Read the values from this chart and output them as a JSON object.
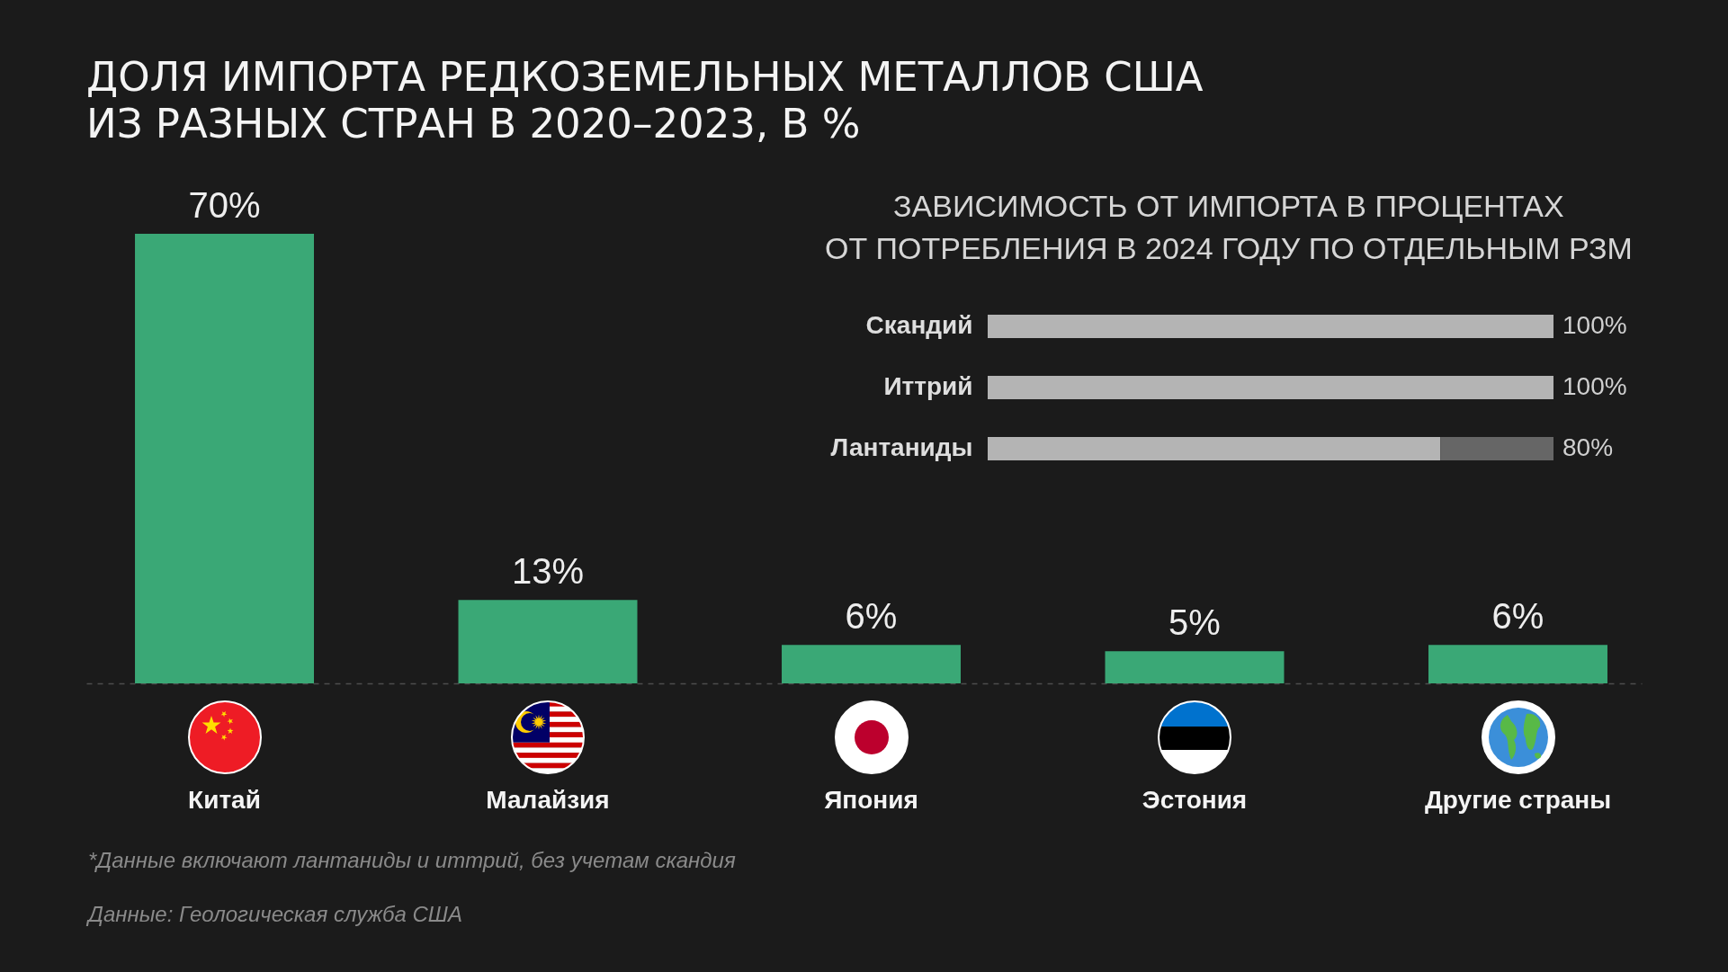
{
  "chart_data": [
    {
      "type": "bar",
      "title": "ДОЛЯ ИМПОРТА РЕДКОЗЕМЕЛЬНЫХ МЕТАЛЛОВ США\nИЗ РАЗНЫХ СТРАН В 2020–2023, В %",
      "categories": [
        "Китай",
        "Малайзия",
        "Япония",
        "Эстония",
        "Другие страны"
      ],
      "values": [
        70,
        13,
        6,
        5,
        6
      ],
      "value_labels": [
        "70%",
        "13%",
        "6%",
        "5%",
        "6%"
      ],
      "color": "#3aa876",
      "tick_labels": "x",
      "annotations": [
        "*Данные включают лантаниды и иттрий, без учетам скандия",
        "Данные: Геологическая служба США"
      ]
    },
    {
      "type": "bar",
      "orientation": "horizontal",
      "stacked": true,
      "title": "ЗАВИСИМОСТЬ ОТ ИМПОРТА В ПРОЦЕНТАХ\nОТ ПОТРЕБЛЕНИЯ В 2024 ГОДУ ПО ОТДЕЛЬНЫМ РЗМ",
      "categories": [
        "Скандий",
        "Иттрий",
        "Лантаниды"
      ],
      "series": [
        {
          "color": "#b4b4b4",
          "values": [
            100,
            100,
            80
          ],
          "value_labels": [
            "100%",
            "100%",
            null
          ]
        },
        {
          "color": "#666666",
          "values": [
            null,
            null,
            20
          ]
        }
      ],
      "annotations": [
        {
          "text": "80%",
          "x": 100,
          "y": "Лантаниды"
        }
      ],
      "tick_labels": "y"
    }
  ]
}
